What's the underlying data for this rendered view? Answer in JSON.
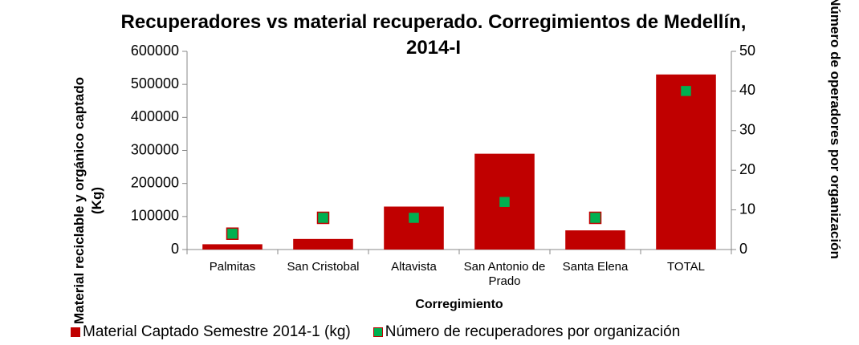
{
  "chart_data": {
    "type": "bar",
    "title": "Recuperadores vs material recuperado. Corregimientos de Medellín, 2014-I",
    "x_label": "Corregimiento",
    "y_label": "Material reciclable y orgánico captado (Kg)",
    "y2_label": "Número de operadores por organización",
    "categories": [
      "Palmitas",
      "San Cristobal",
      "Altavista",
      "San Antonio de Prado",
      "Santa Elena",
      "TOTAL"
    ],
    "series": [
      {
        "name": "Material Captado Semestre 2014-1 (kg)",
        "type": "bar",
        "color": "#c00000",
        "values": [
          16000,
          32000,
          130000,
          290000,
          58000,
          530000
        ]
      },
      {
        "name": "Número de recuperadores por organización",
        "type": "scatter",
        "axis": "y2",
        "color": "#00b050",
        "edge_color": "#c00000",
        "values": [
          4,
          8,
          8,
          12,
          8,
          40
        ]
      }
    ],
    "ylim": [
      0,
      600000
    ],
    "yticks": [
      0,
      100000,
      200000,
      300000,
      400000,
      500000,
      600000
    ],
    "y2lim": [
      0,
      50
    ],
    "y2ticks": [
      0,
      10,
      20,
      30,
      40,
      50
    ],
    "grid": false,
    "legend": "bottom"
  }
}
